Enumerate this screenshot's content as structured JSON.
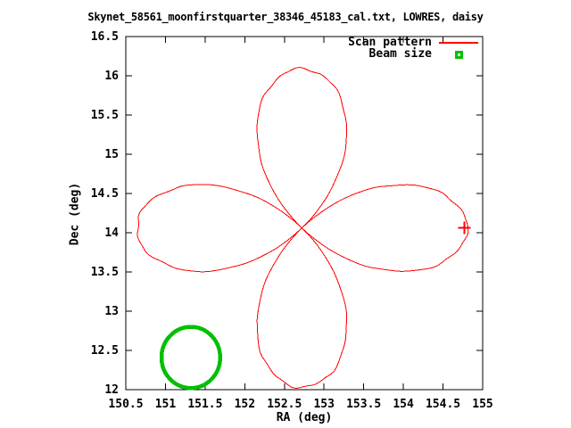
{
  "window": {
    "background": "#ffffff",
    "text_color": "#000000"
  },
  "chart_data": {
    "type": "line",
    "title": "Skynet_58561_moonfirstquarter_38346_45183_cal.txt, LOWRES, daisy",
    "xlabel": "RA (deg)",
    "ylabel": "Dec (deg)",
    "xlim": [
      150.5,
      155
    ],
    "ylim": [
      12,
      16.5
    ],
    "xticks": [
      150.5,
      151,
      151.5,
      152,
      152.5,
      153,
      153.5,
      154,
      154.5,
      155
    ],
    "yticks": [
      12,
      12.5,
      13,
      13.5,
      14,
      14.5,
      15,
      15.5,
      16,
      16.5
    ],
    "grid": false,
    "legend_position": "top-right-inside",
    "frame_color": "#000000",
    "series": [
      {
        "name": "Scan pattern",
        "type": "rose",
        "color": "#ff0000",
        "petals": 4,
        "petal_axes": "cardinal",
        "center_ra": 152.72,
        "center_dec": 14.06,
        "radius_ra_deg": 2.08,
        "radius_dec_deg": 2.03,
        "end_marker": {
          "type": "plus",
          "ra": 154.77,
          "dec": 14.06
        }
      },
      {
        "name": "Beam size",
        "type": "circle",
        "color": "#00c000",
        "center_ra": 151.32,
        "center_dec": 12.41,
        "radius_ra_deg": 0.37,
        "radius_dec_deg": 0.39
      }
    ]
  }
}
